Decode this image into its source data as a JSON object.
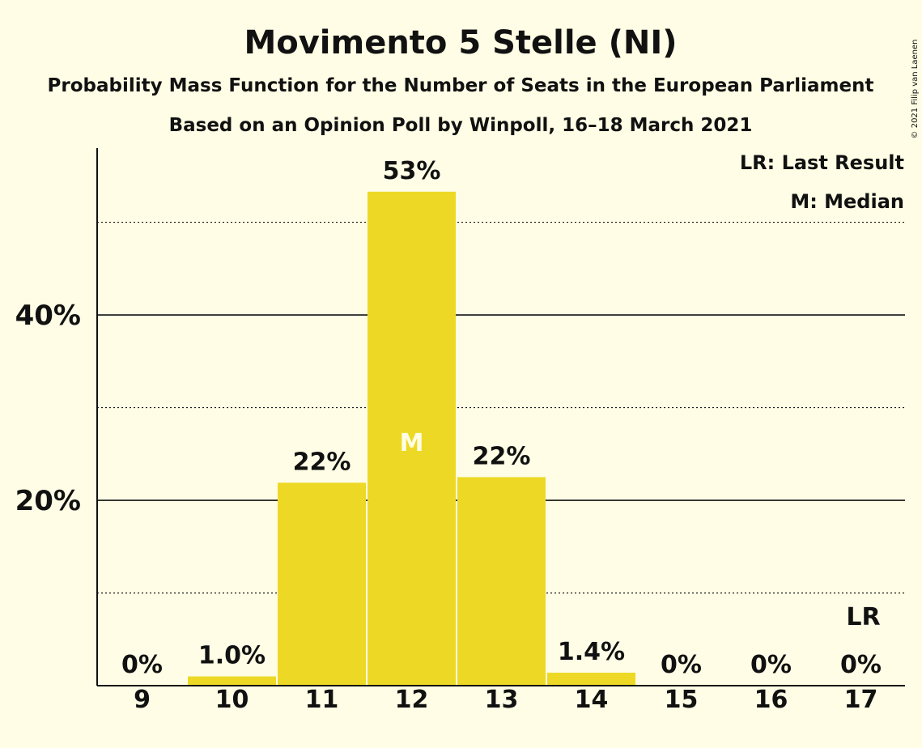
{
  "chart_data": {
    "type": "bar",
    "title": "Movimento 5 Stelle (NI)",
    "subtitle": "Probability Mass Function for the Number of Seats in the European Parliament",
    "subtitle2": "Based on an Opinion Poll by Winpoll, 16–18 March 2021",
    "copyright": "© 2021 Filip van Laenen",
    "categories": [
      "9",
      "10",
      "11",
      "12",
      "13",
      "14",
      "15",
      "16",
      "17"
    ],
    "values": [
      0,
      1.0,
      21.9,
      53.3,
      22.5,
      1.4,
      0,
      0,
      0
    ],
    "data_labels": [
      "0%",
      "1.0%",
      "22%",
      "53%",
      "22%",
      "1.4%",
      "0%",
      "0%",
      "0%"
    ],
    "ylim": [
      0,
      58
    ],
    "yticks_major": [
      {
        "value": 20,
        "label": "20%"
      },
      {
        "value": 40,
        "label": "40%"
      }
    ],
    "yticks_minor": [
      10,
      30,
      50
    ],
    "median_index": 3,
    "median_marker": "M",
    "last_result_index": 8,
    "last_result_marker": "LR",
    "legend": [
      "LR: Last Result",
      "M: Median"
    ],
    "legend_position": "top-right",
    "bar_color": "#EDD925"
  }
}
